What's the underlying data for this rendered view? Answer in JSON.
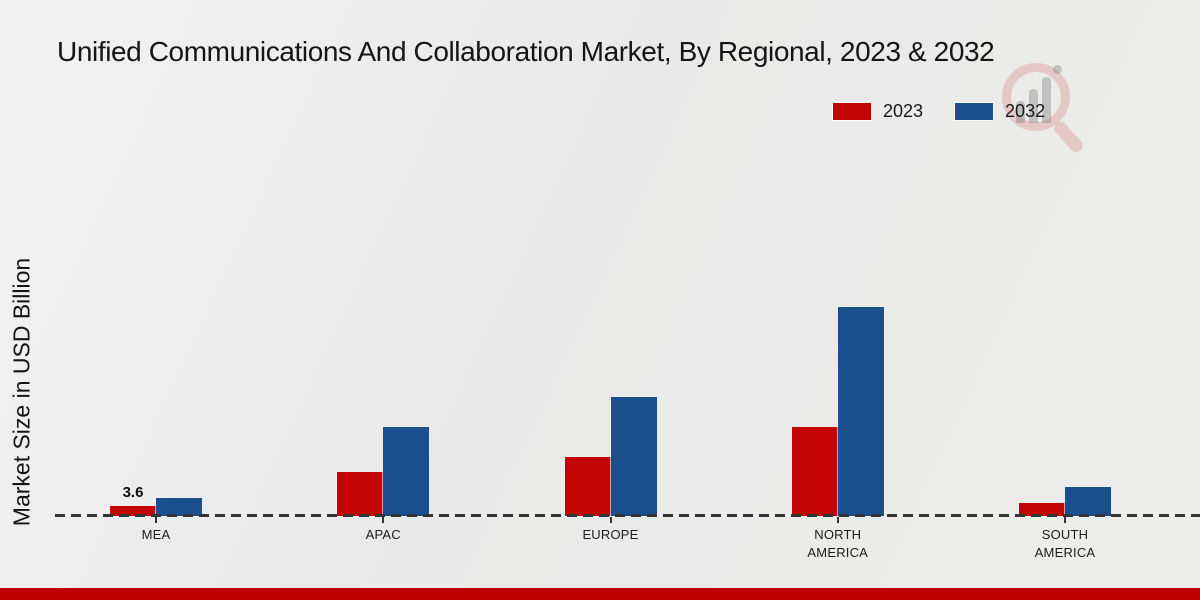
{
  "title": "Unified Communications And Collaboration Market, By Regional, 2023 & 2032",
  "y_axis_label": "Market Size in USD Billion",
  "legend": [
    {
      "label": "2023",
      "color": "#c40404"
    },
    {
      "label": "2032",
      "color": "#1b4e8c"
    }
  ],
  "footer": {
    "color": "#c00000"
  },
  "watermark": {
    "icon": "magnifier-bars-logo-icon"
  },
  "chart_data": {
    "type": "bar",
    "categories": [
      "MEA",
      "APAC",
      "EUROPE",
      "NORTH AMERICA",
      "SOUTH AMERICA"
    ],
    "series": [
      {
        "name": "2023",
        "color": "#c40404",
        "values": [
          3.6,
          15.8,
          21.2,
          32.0,
          4.7
        ]
      },
      {
        "name": "2032",
        "color": "#1b4e8c",
        "values": [
          6.5,
          32.0,
          42.8,
          75.0,
          10.4
        ]
      }
    ],
    "title": "Unified Communications And Collaboration Market, By Regional, 2023 & 2032",
    "xlabel": "",
    "ylabel": "Market Size in USD Billion",
    "ylim": [
      0,
      80
    ],
    "grid": false,
    "legend_position": "top-right",
    "baseline_style": "dashed",
    "annotations": [
      {
        "series": "2023",
        "category": "MEA",
        "text": "3.6"
      }
    ]
  }
}
